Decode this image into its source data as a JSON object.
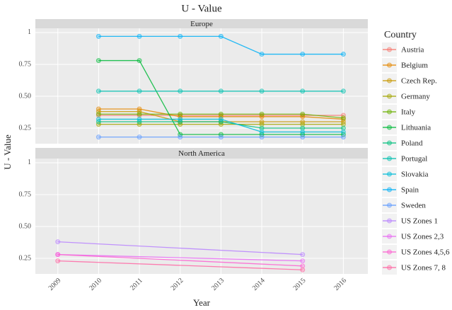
{
  "chart_data": {
    "type": "line",
    "title": "U - Value",
    "x_label": "Year",
    "y_label": "U - Value",
    "legend_title": "Country",
    "legend_position": "right",
    "grid": true,
    "xlim": [
      2008.45,
      2016.6
    ],
    "xticks": [
      2009,
      2010,
      2011,
      2012,
      2013,
      2014,
      2015,
      2016
    ],
    "ylim": [
      0.128,
      1.033
    ],
    "yticks": [
      0.25,
      {
        "value": 0.5,
        "label": "0.50"
      },
      0.75,
      1
    ],
    "facets": [
      {
        "name": "Europe",
        "x": [
          2010,
          2011,
          2012,
          2013,
          2014,
          2015,
          2016
        ],
        "series": [
          {
            "name": "Austria",
            "color": "#F8766D",
            "values": [
              0.35,
              0.35,
              0.35,
              0.35,
              0.35,
              0.35,
              0.35
            ]
          },
          {
            "name": "Belgium",
            "color": "#E58700",
            "values": [
              0.4,
              0.4,
              0.34,
              0.34,
              0.34,
              0.34,
              0.32
            ]
          },
          {
            "name": "Czech Rep.",
            "color": "#C99800",
            "values": [
              0.38,
              0.38,
              0.3,
              0.3,
              0.3,
              0.3,
              0.3
            ]
          },
          {
            "name": "Germany",
            "color": "#A3A500",
            "values": [
              0.28,
              0.28,
              0.28,
              0.28,
              0.28,
              0.28,
              0.28
            ]
          },
          {
            "name": "Italy",
            "color": "#6BB100",
            "values": [
              0.36,
              0.36,
              0.36,
              0.36,
              0.36,
              0.36,
              0.33
            ]
          },
          {
            "name": "Lithuania",
            "color": "#00BA38",
            "values": [
              0.78,
              0.78,
              0.2,
              0.2,
              0.2,
              0.2,
              0.2
            ]
          },
          {
            "name": "Poland",
            "color": "#00BF7D",
            "values": [
              0.3,
              0.3,
              0.3,
              0.3,
              0.25,
              0.25,
              0.25
            ]
          },
          {
            "name": "Portugal",
            "color": "#00C0AF",
            "values": [
              0.54,
              0.54,
              0.54,
              0.54,
              0.54,
              0.54,
              0.54
            ]
          },
          {
            "name": "Slovakia",
            "color": "#00BCD8",
            "values": [
              0.32,
              0.32,
              0.32,
              0.32,
              0.22,
              0.22,
              0.22
            ]
          },
          {
            "name": "Spain",
            "color": "#00B0F6",
            "values": [
              0.97,
              0.97,
              0.97,
              0.97,
              0.83,
              0.83,
              0.83
            ]
          },
          {
            "name": "Sweden",
            "color": "#619CFF",
            "values": [
              0.18,
              0.18,
              0.18,
              0.18,
              0.18,
              0.18,
              0.18
            ]
          }
        ]
      },
      {
        "name": "North America",
        "x": [
          2009,
          2015
        ],
        "series": [
          {
            "name": "US Zones 1",
            "color": "#B983FF",
            "values": [
              0.38,
              0.28
            ]
          },
          {
            "name": "US Zones 2,3",
            "color": "#E76BF3",
            "values": [
              0.28,
              0.23
            ]
          },
          {
            "name": "US Zones 4,5,6",
            "color": "#FD61D1",
            "values": [
              0.28,
              0.19
            ]
          },
          {
            "name": "US Zones 7, 8",
            "color": "#FF67A4",
            "values": [
              0.23,
              0.16
            ]
          }
        ]
      }
    ]
  }
}
